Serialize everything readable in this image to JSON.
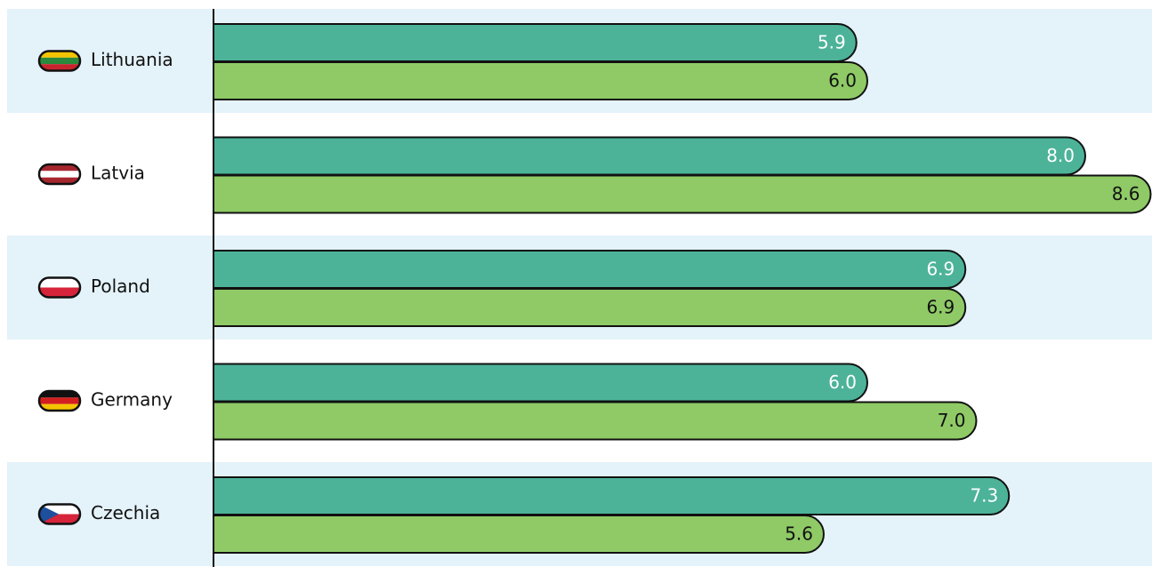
{
  "chart_data": {
    "type": "hbar",
    "categories": [
      "Lithuania",
      "Latvia",
      "Poland",
      "Germany",
      "Czechia"
    ],
    "series": [
      {
        "color": "#4cb399",
        "values": [
          5.9,
          8.0,
          6.9,
          6.0,
          7.3
        ],
        "value_labels": [
          "5.9",
          "8.0",
          "6.9",
          "6.0",
          "7.3"
        ]
      },
      {
        "color": "#8fca66",
        "values": [
          6.0,
          8.6,
          6.9,
          7.0,
          5.6
        ],
        "value_labels": [
          "6.0",
          "8.6",
          "6.9",
          "7.0",
          "5.6"
        ]
      }
    ]
  }
}
